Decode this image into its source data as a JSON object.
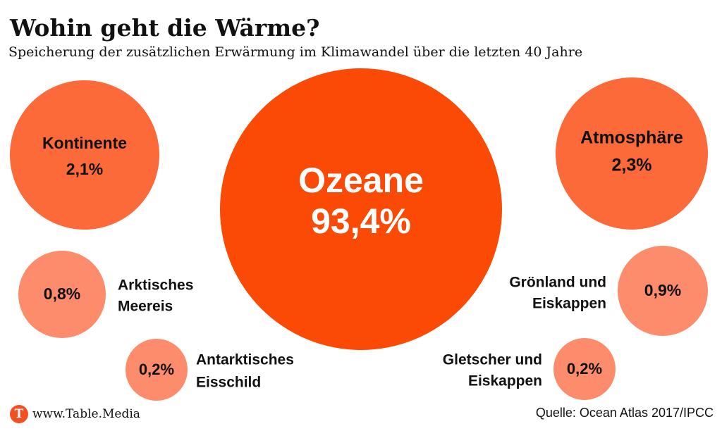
{
  "header": {
    "title": "Wohin geht die Wärme?",
    "subtitle": "Speicherung der zusätzlichen Erwärmung im Klimawandel über die letzten 40 Jahre"
  },
  "chart_data": {
    "type": "bubble",
    "unit": "%",
    "series": [
      {
        "name": "Ozeane",
        "value": 93.4,
        "value_label": "93,4%",
        "label_lines": [
          "Ozeane"
        ],
        "label_position": "inside",
        "shade": "dark"
      },
      {
        "name": "Kontinente",
        "value": 2.1,
        "value_label": "2,1%",
        "label_lines": [
          "Kontinente"
        ],
        "label_position": "inside",
        "shade": "medium"
      },
      {
        "name": "Atmosphäre",
        "value": 2.3,
        "value_label": "2,3%",
        "label_lines": [
          "Atmosphäre"
        ],
        "label_position": "inside",
        "shade": "medium"
      },
      {
        "name": "Arktisches Meereis",
        "value": 0.8,
        "value_label": "0,8%",
        "label_lines": [
          "Arktisches",
          "Meereis"
        ],
        "label_position": "right",
        "shade": "light"
      },
      {
        "name": "Grönland und Eiskappen",
        "value": 0.9,
        "value_label": "0,9%",
        "label_lines": [
          "Grönland und",
          "Eiskappen"
        ],
        "label_position": "left",
        "shade": "light"
      },
      {
        "name": "Antarktisches Eisschild",
        "value": 0.2,
        "value_label": "0,2%",
        "label_lines": [
          "Antarktisches",
          "Eisschild"
        ],
        "label_position": "right",
        "shade": "light"
      },
      {
        "name": "Gletscher und Eiskappen",
        "value": 0.2,
        "value_label": "0,2%",
        "label_lines": [
          "Gletscher und",
          "Eiskappen"
        ],
        "label_position": "left",
        "shade": "light"
      }
    ]
  },
  "colors": {
    "dark": "#fa4a05",
    "medium": "#fd6a3a",
    "light": "#fd8c6c",
    "logo": "#f25022",
    "text": "#111111",
    "text_on_dark": "#ffffff"
  },
  "footer": {
    "logo_letter": "T",
    "website": "www.Table.Media",
    "source": "Quelle: Ocean Atlas 2017/IPCC"
  }
}
